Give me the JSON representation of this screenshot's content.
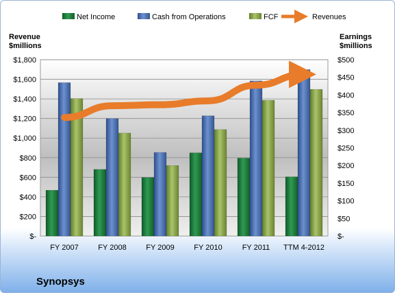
{
  "chart_data": {
    "type": "bar",
    "title": "Synopsys",
    "categories": [
      "FY 2007",
      "FY 2008",
      "FY 2009",
      "FY 2010",
      "FY 2011",
      "TTM 4-2012"
    ],
    "y_left": {
      "label_line1": "Revenue",
      "label_line2": "$millions",
      "ylim": [
        0,
        1800
      ],
      "ticks": [
        0,
        200,
        400,
        600,
        800,
        1000,
        1200,
        1400,
        1600,
        1800
      ],
      "tick_labels": [
        "$-",
        "$200",
        "$400",
        "$600",
        "$800",
        "$1,000",
        "$1,200",
        "$1,400",
        "$1,600",
        "$1,800"
      ]
    },
    "y_right": {
      "label_line1": "Earnings",
      "label_line2": "$millions",
      "ylim": [
        0,
        500
      ],
      "ticks": [
        0,
        50,
        100,
        150,
        200,
        250,
        300,
        350,
        400,
        450,
        500
      ],
      "tick_labels": [
        "$-",
        "$50",
        "$100",
        "$150",
        "$200",
        "$250",
        "$300",
        "$350",
        "$400",
        "$450",
        "$500"
      ]
    },
    "series": [
      {
        "name": "Net Income",
        "axis": "right",
        "type": "bar",
        "color": "#1f7a3c",
        "values": [
          130,
          189,
          166,
          236,
          221,
          168
        ]
      },
      {
        "name": "Cash from Operations",
        "axis": "right",
        "type": "bar",
        "color": "#4a6fb0",
        "values": [
          435,
          333,
          237,
          341,
          440,
          472
        ]
      },
      {
        "name": "FCF",
        "axis": "right",
        "type": "bar",
        "color": "#8aa64a",
        "values": [
          390,
          292,
          200,
          302,
          385,
          416
        ]
      },
      {
        "name": "Revenues",
        "axis": "left",
        "type": "line",
        "color": "#e87c2a",
        "values": [
          1210,
          1330,
          1340,
          1380,
          1540,
          1650
        ]
      }
    ],
    "legend_position": "top",
    "grid": true
  }
}
